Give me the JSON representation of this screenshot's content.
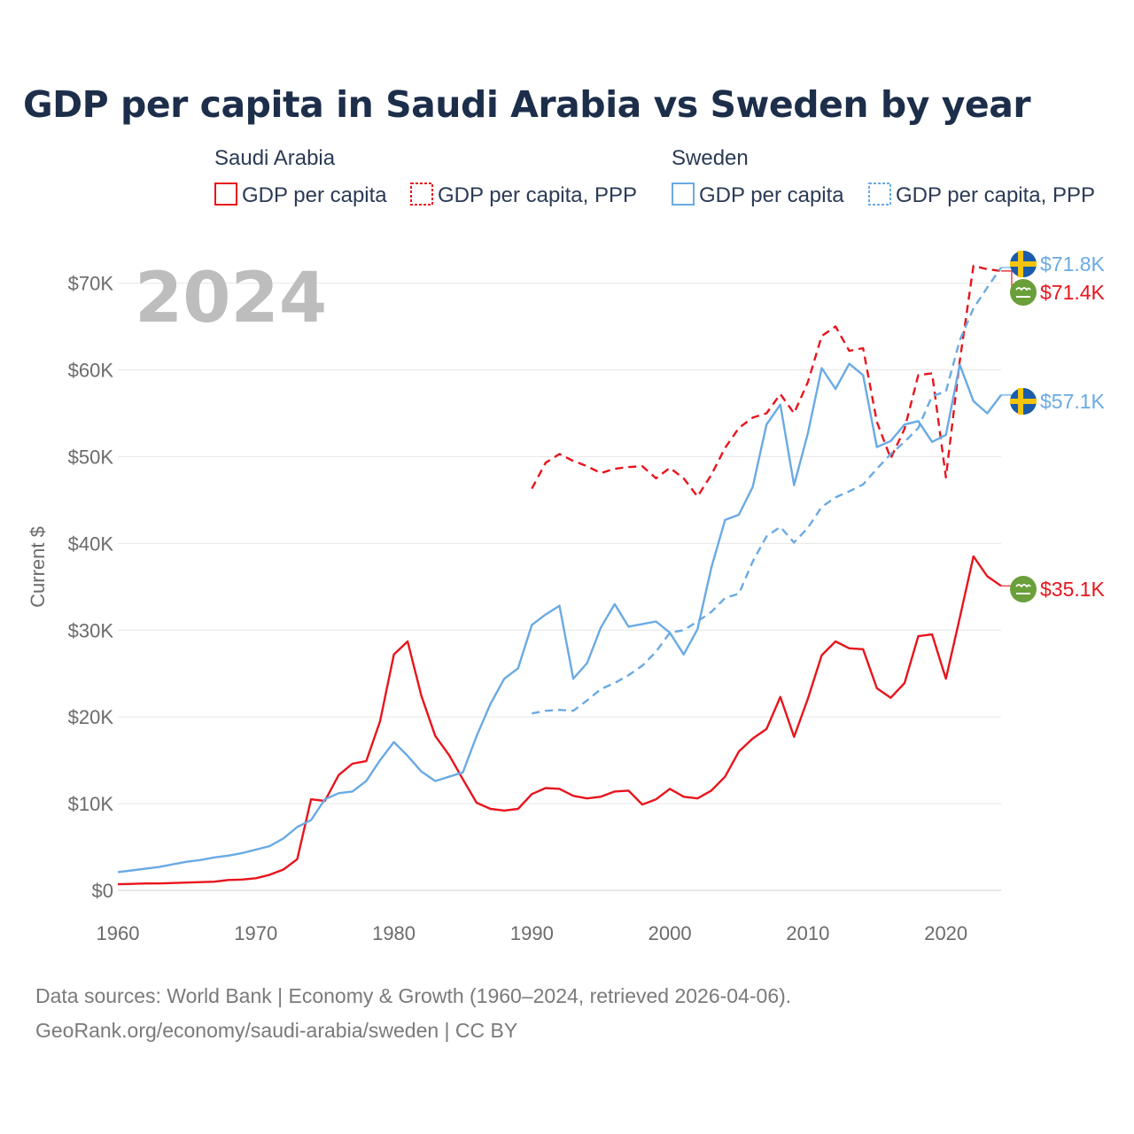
{
  "title": "GDP per capita in Saudi Arabia vs Sweden by year",
  "legend": {
    "groups": [
      {
        "name": "Saudi Arabia",
        "entries": [
          "GDP per capita",
          "GDP per capita, PPP"
        ]
      },
      {
        "name": "Sweden",
        "entries": [
          "GDP per capita",
          "GDP per capita, PPP"
        ]
      }
    ]
  },
  "watermark_year": "2024",
  "source_line1": "Data sources: World Bank | Economy & Growth (1960–2024, retrieved 2026-04-06).",
  "source_line2": "GeoRank.org/economy/saudi-arabia/sweden | CC BY",
  "colors": {
    "saudi": "#e8141c",
    "sweden": "#6aaae4",
    "grid": "#e6e6e6",
    "saudi_flag": "#6a9f3a",
    "sweden_flag_blue": "#1a5cab",
    "sweden_flag_yellow": "#f4c40f"
  },
  "chart_data": {
    "type": "line",
    "title": "GDP per capita in Saudi Arabia vs Sweden by year",
    "xlabel": "",
    "ylabel": "Current $",
    "xlim": [
      1960,
      2024
    ],
    "ylim": [
      0,
      72000
    ],
    "x_ticks": [
      1960,
      1970,
      1980,
      1990,
      2000,
      2010,
      2020
    ],
    "y_ticks": [
      0,
      10000,
      20000,
      30000,
      40000,
      50000,
      60000,
      70000
    ],
    "y_tick_labels": [
      "$0",
      "$10K",
      "$20K",
      "$30K",
      "$40K",
      "$50K",
      "$60K",
      "$70K"
    ],
    "series": [
      {
        "name": "Saudi Arabia GDP per capita",
        "country": "saudi",
        "dash": "solid",
        "x": [
          1960,
          1961,
          1962,
          1963,
          1964,
          1965,
          1966,
          1967,
          1968,
          1969,
          1970,
          1971,
          1972,
          1973,
          1974,
          1975,
          1976,
          1977,
          1978,
          1979,
          1980,
          1981,
          1982,
          1983,
          1984,
          1985,
          1986,
          1987,
          1988,
          1989,
          1990,
          1991,
          1992,
          1993,
          1994,
          1995,
          1996,
          1997,
          1998,
          1999,
          2000,
          2001,
          2002,
          2003,
          2004,
          2005,
          2006,
          2007,
          2008,
          2009,
          2010,
          2011,
          2012,
          2013,
          2014,
          2015,
          2016,
          2017,
          2018,
          2019,
          2020,
          2021,
          2022,
          2023,
          2024
        ],
        "values": [
          700,
          750,
          800,
          800,
          850,
          900,
          950,
          1000,
          1200,
          1250,
          1400,
          1800,
          2400,
          3600,
          10500,
          10300,
          13300,
          14600,
          14900,
          19500,
          27200,
          28700,
          22400,
          17800,
          15600,
          12800,
          10100,
          9400,
          9200,
          9400,
          11100,
          11800,
          11700,
          10900,
          10600,
          10800,
          11400,
          11500,
          9900,
          10500,
          11700,
          10800,
          10600,
          11500,
          13100,
          16000,
          17500,
          18600,
          22300,
          17700,
          22100,
          27100,
          28700,
          27900,
          27800,
          23300,
          22200,
          23900,
          29300,
          29500,
          24400,
          31400,
          38500,
          36200,
          35100
        ],
        "end_label": "$35.1K"
      },
      {
        "name": "Saudi Arabia GDP per capita, PPP",
        "country": "saudi",
        "dash": "dashed",
        "x": [
          1990,
          1991,
          1992,
          1993,
          1994,
          1995,
          1996,
          1997,
          1998,
          1999,
          2000,
          2001,
          2002,
          2003,
          2004,
          2005,
          2006,
          2007,
          2008,
          2009,
          2010,
          2011,
          2012,
          2013,
          2014,
          2015,
          2016,
          2017,
          2018,
          2019,
          2020,
          2021,
          2022,
          2023,
          2024
        ],
        "values": [
          46300,
          49300,
          50300,
          49500,
          48900,
          48100,
          48600,
          48800,
          48900,
          47500,
          48700,
          47500,
          45400,
          47900,
          51000,
          53300,
          54500,
          55000,
          57200,
          55000,
          58600,
          63900,
          65000,
          62200,
          62500,
          54000,
          49800,
          53200,
          59400,
          59600,
          47600,
          61000,
          72000,
          71600,
          71400
        ],
        "end_label": "$71.4K"
      },
      {
        "name": "Sweden GDP per capita",
        "country": "sweden",
        "dash": "solid",
        "x": [
          1960,
          1961,
          1962,
          1963,
          1964,
          1965,
          1966,
          1967,
          1968,
          1969,
          1970,
          1971,
          1972,
          1973,
          1974,
          1975,
          1976,
          1977,
          1978,
          1979,
          1980,
          1981,
          1982,
          1983,
          1984,
          1985,
          1986,
          1987,
          1988,
          1989,
          1990,
          1991,
          1992,
          1993,
          1994,
          1995,
          1996,
          1997,
          1998,
          1999,
          2000,
          2001,
          2002,
          2003,
          2004,
          2005,
          2006,
          2007,
          2008,
          2009,
          2010,
          2011,
          2012,
          2013,
          2014,
          2015,
          2016,
          2017,
          2018,
          2019,
          2020,
          2021,
          2022,
          2023,
          2024
        ],
        "values": [
          2100,
          2300,
          2500,
          2700,
          3000,
          3300,
          3500,
          3800,
          4000,
          4300,
          4700,
          5100,
          6000,
          7300,
          8100,
          10500,
          11200,
          11400,
          12600,
          15000,
          17100,
          15500,
          13700,
          12600,
          13100,
          13600,
          17800,
          21500,
          24400,
          25600,
          30600,
          31800,
          32800,
          24400,
          26200,
          30300,
          33000,
          30400,
          30700,
          31000,
          29700,
          27200,
          30100,
          37200,
          42700,
          43300,
          46500,
          53700,
          56000,
          46700,
          52700,
          60200,
          57800,
          60700,
          59400,
          51100,
          51800,
          53700,
          54100,
          51700,
          52500,
          60600,
          56400,
          55000,
          57100
        ],
        "end_label": "$57.1K"
      },
      {
        "name": "Sweden GDP per capita, PPP",
        "country": "sweden",
        "dash": "dashed",
        "x": [
          1990,
          1991,
          1992,
          1993,
          1994,
          1995,
          1996,
          1997,
          1998,
          1999,
          2000,
          2001,
          2002,
          2003,
          2004,
          2005,
          2006,
          2007,
          2008,
          2009,
          2010,
          2011,
          2012,
          2013,
          2014,
          2015,
          2016,
          2017,
          2018,
          2019,
          2020,
          2021,
          2022,
          2023,
          2024
        ],
        "values": [
          20400,
          20700,
          20800,
          20700,
          21900,
          23200,
          23900,
          24800,
          25900,
          27500,
          29700,
          30000,
          31000,
          32100,
          33700,
          34200,
          37900,
          40800,
          41900,
          40100,
          41800,
          44200,
          45300,
          46000,
          46800,
          48600,
          50300,
          51700,
          53300,
          57000,
          57500,
          63400,
          67100,
          69500,
          71800
        ],
        "end_label": "$71.8K"
      }
    ]
  }
}
